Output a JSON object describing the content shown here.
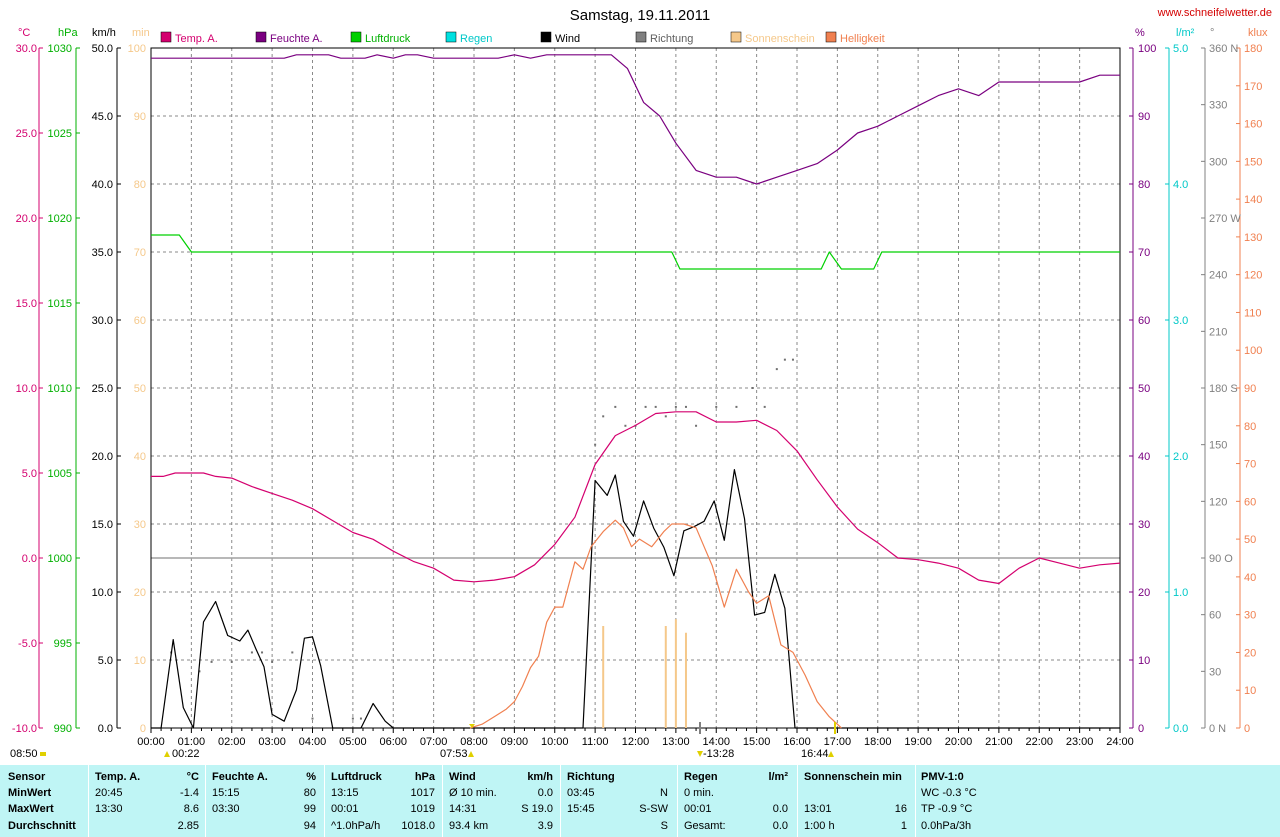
{
  "title": "Samstag, 19.11.2011",
  "site": "www.schneifelwetter.de",
  "chart_data": {
    "type": "line",
    "legend": {
      "placement": "top",
      "entries": [
        {
          "name": "Temp. A.",
          "color": "#d4006f"
        },
        {
          "name": "Feuchte A.",
          "color": "#7a0080"
        },
        {
          "name": "Luftdruck",
          "color": "#00d000"
        },
        {
          "name": "Regen",
          "color": "#00e0e0"
        },
        {
          "name": "Wind",
          "color": "#000000"
        },
        {
          "name": "Richtung",
          "color": "#808080"
        },
        {
          "name": "Sonnenschein",
          "color": "#f5c88a"
        },
        {
          "name": "Helligkeit",
          "color": "#f08050"
        }
      ]
    },
    "axes": {
      "temp": {
        "unit": "°C",
        "color": "#d4006f",
        "ylim": [
          -10,
          30
        ],
        "ticks": [
          "30.0",
          "25.0",
          "20.0",
          "15.0",
          "10.0",
          "5.0",
          "0.0",
          "-5.0",
          "-10.0"
        ]
      },
      "pressure": {
        "unit": "hPa",
        "color": "#00b000",
        "ylim": [
          990,
          1030
        ],
        "ticks": [
          "1030",
          "1025",
          "1020",
          "1015",
          "1010",
          "1005",
          "1000",
          "995",
          "990"
        ]
      },
      "wind": {
        "unit": "km/h",
        "color": "#000000",
        "ylim": [
          0,
          50
        ],
        "ticks": [
          "50.0",
          "45.0",
          "40.0",
          "35.0",
          "30.0",
          "25.0",
          "20.0",
          "15.0",
          "10.0",
          "5.0",
          "0.0"
        ]
      },
      "sun": {
        "unit": "min",
        "color": "#f5c88a",
        "ylim": [
          0,
          100
        ],
        "ticks": [
          "100",
          "90",
          "80",
          "70",
          "60",
          "50",
          "40",
          "30",
          "20",
          "10",
          "0"
        ]
      },
      "humidity": {
        "unit": "%",
        "color": "#7a0080",
        "ylim": [
          0,
          100
        ],
        "ticks": [
          "100",
          "90",
          "80",
          "70",
          "60",
          "50",
          "40",
          "30",
          "20",
          "10",
          "0"
        ]
      },
      "rain": {
        "unit": "l/m²",
        "color": "#00c8c8",
        "ylim": [
          0,
          5
        ],
        "ticks": [
          "5.0",
          "4.0",
          "3.0",
          "2.0",
          "1.0",
          "0.0"
        ]
      },
      "direction": {
        "unit": "°",
        "color": "#808080",
        "ylim": [
          0,
          360
        ],
        "ticks": [
          "360 N",
          "330",
          "300",
          "270 W",
          "240",
          "210",
          "180 S",
          "150",
          "120",
          "90 O",
          "60",
          "30",
          "0 N"
        ]
      },
      "brightness": {
        "unit": "klux",
        "color": "#f08050",
        "ylim": [
          0,
          180
        ],
        "ticks": [
          "180",
          "170",
          "160",
          "150",
          "140",
          "130",
          "120",
          "110",
          "100",
          "90",
          "80",
          "70",
          "60",
          "50",
          "40",
          "30",
          "20",
          "10",
          "0"
        ]
      }
    },
    "x_ticks": [
      "00:00",
      "01:00",
      "02:00",
      "03:00",
      "04:00",
      "05:00",
      "06:00",
      "07:00",
      "08:00",
      "09:00",
      "10:00",
      "11:00",
      "12:00",
      "13:00",
      "14:00",
      "15:00",
      "16:00",
      "17:00",
      "18:00",
      "19:00",
      "20:00",
      "21:00",
      "22:00",
      "23:00",
      "24:00"
    ],
    "xlim": [
      0,
      24
    ],
    "grid": true,
    "markers": {
      "left": "08:50",
      "moonrise": "00:22",
      "sunrise": "07:53",
      "noon": "-13:28",
      "sunset": "16:44"
    },
    "series": [
      {
        "name": "Temp. A.",
        "axis": "temp",
        "x": [
          0,
          0.3,
          0.6,
          1,
          1.3,
          1.6,
          2,
          2.5,
          3,
          3.5,
          4,
          4.5,
          5,
          5.5,
          6,
          6.5,
          7,
          7.5,
          8,
          8.5,
          9,
          9.5,
          10,
          10.5,
          11,
          11.5,
          12,
          12.5,
          13,
          13.5,
          14,
          14.5,
          15,
          15.5,
          16,
          16.5,
          17,
          17.5,
          18,
          18.5,
          19,
          19.5,
          20,
          20.5,
          21,
          21.5,
          22,
          22.5,
          23,
          23.5,
          24
        ],
        "y": [
          4.8,
          4.8,
          5.0,
          5.0,
          5.0,
          4.8,
          4.7,
          4.2,
          3.8,
          3.4,
          2.9,
          2.2,
          1.5,
          1.1,
          0.4,
          -0.2,
          -0.6,
          -1.3,
          -1.4,
          -1.3,
          -1.1,
          -0.4,
          0.8,
          2.4,
          5.5,
          7.2,
          7.8,
          8.5,
          8.6,
          8.6,
          8.0,
          8.0,
          8.1,
          7.5,
          6.3,
          4.6,
          3.0,
          1.7,
          0.9,
          0.0,
          -0.1,
          -0.3,
          -0.6,
          -1.3,
          -1.5,
          -0.6,
          0.0,
          -0.3,
          -0.6,
          -0.4,
          -0.3
        ]
      },
      {
        "name": "Feuchte A.",
        "axis": "humidity",
        "x": [
          0,
          1,
          2,
          3,
          3.3,
          3.6,
          4,
          4.4,
          4.7,
          5,
          5.3,
          5.6,
          6,
          6.3,
          6.6,
          7,
          7.4,
          7.8,
          8.2,
          8.6,
          9,
          9.4,
          9.8,
          10.2,
          10.6,
          11,
          11.4,
          11.8,
          12.2,
          12.6,
          13,
          13.5,
          14,
          14.5,
          15,
          15.5,
          16,
          16.5,
          17,
          17.5,
          18,
          18.5,
          19,
          19.5,
          20,
          20.5,
          21,
          21.5,
          22,
          22.5,
          23,
          23.5,
          24
        ],
        "y": [
          98.5,
          98.5,
          98.5,
          98.5,
          98.5,
          99,
          99,
          99,
          98.5,
          98.5,
          98.5,
          99,
          98.5,
          99,
          99,
          98.5,
          98.5,
          98.5,
          98.5,
          98.5,
          99,
          98.5,
          99,
          99,
          99,
          99,
          99,
          97,
          92,
          90,
          86,
          82,
          81,
          81,
          80,
          81,
          82,
          83,
          85,
          87.5,
          88.5,
          90,
          91.5,
          93,
          94,
          93,
          95,
          95,
          95,
          95,
          95,
          96,
          96
        ]
      },
      {
        "name": "Luftdruck",
        "axis": "pressure",
        "x": [
          0,
          0.7,
          1.0,
          12.9,
          13.1,
          16.6,
          16.8,
          17.1,
          17.9,
          18.1,
          24
        ],
        "y": [
          1019,
          1019,
          1018,
          1018,
          1017,
          1017,
          1018,
          1017,
          1017,
          1018,
          1018
        ]
      },
      {
        "name": "Wind",
        "axis": "wind",
        "x": [
          0,
          0.25,
          0.55,
          0.8,
          1.05,
          1.3,
          1.6,
          1.9,
          2.2,
          2.4,
          2.6,
          2.8,
          3.0,
          3.3,
          3.6,
          3.8,
          4.0,
          4.2,
          4.5,
          5.0,
          5.2,
          5.5,
          5.8,
          6.0,
          7,
          8,
          9,
          10,
          10.2,
          10.5,
          10.7,
          11.0,
          11.3,
          11.5,
          11.7,
          11.95,
          12.2,
          12.45,
          12.7,
          12.95,
          13.2,
          13.45,
          13.7,
          13.95,
          14.2,
          14.45,
          14.7,
          14.95,
          15.2,
          15.45,
          15.7,
          15.95,
          16.2,
          24
        ],
        "y": [
          0,
          0,
          6.5,
          1.5,
          0,
          7.8,
          9.3,
          6.8,
          6.4,
          7.2,
          5.8,
          4.5,
          1.0,
          0.5,
          2.8,
          6.6,
          6.7,
          4.6,
          0,
          0,
          0,
          1.8,
          0.5,
          0,
          0,
          0,
          0,
          0,
          0,
          0,
          0,
          18.2,
          17.1,
          18.6,
          15.2,
          14.1,
          16.7,
          14.7,
          13.3,
          11.2,
          14.5,
          14.8,
          15.2,
          16.7,
          13.8,
          19.0,
          15.4,
          8.3,
          8.5,
          11.3,
          8.8,
          0,
          0,
          0
        ]
      },
      {
        "name": "Helligkeit",
        "axis": "brightness",
        "x": [
          7.9,
          8.2,
          8.5,
          8.8,
          9.0,
          9.2,
          9.4,
          9.6,
          9.8,
          10.0,
          10.2,
          10.5,
          10.7,
          10.9,
          11.2,
          11.5,
          11.7,
          11.9,
          12.1,
          12.4,
          12.7,
          12.9,
          13.2,
          13.5,
          13.7,
          13.9,
          14.2,
          14.5,
          14.8,
          15.0,
          15.3,
          15.6,
          15.9,
          16.2,
          16.5,
          16.8,
          17.1
        ],
        "y": [
          0,
          1,
          3,
          5,
          7,
          11,
          16,
          19,
          28,
          32,
          32,
          44,
          42,
          48,
          52,
          55,
          53,
          48,
          50,
          48,
          52,
          54,
          54,
          53,
          48,
          43,
          32,
          42,
          36,
          33,
          35,
          22,
          20,
          14,
          7,
          3,
          0
        ]
      }
    ],
    "sunshine_bars": {
      "axis": "sun",
      "x": [
        11.2,
        12.75,
        13.0,
        13.25
      ],
      "y": [
        15,
        15,
        16,
        14
      ]
    },
    "direction_points": {
      "axis": "direction",
      "x": [
        0.5,
        1.2,
        1.5,
        2.0,
        2.5,
        2.75,
        3.0,
        3.5,
        4.0,
        5.0,
        5.2,
        11.0,
        11.2,
        11.5,
        11.75,
        12.0,
        12.25,
        12.5,
        12.75,
        13.0,
        13.25,
        13.5,
        14.0,
        14.5,
        14.9,
        15.2,
        15.5,
        15.7,
        15.9
      ],
      "y": [
        40,
        30,
        35,
        35,
        40,
        40,
        35,
        40,
        5,
        5,
        5,
        150,
        165,
        170,
        160,
        160,
        170,
        170,
        165,
        170,
        170,
        160,
        170,
        170,
        180,
        170,
        190,
        195,
        195
      ]
    }
  },
  "stats": {
    "sensor": {
      "header": "Sensor",
      "rows": [
        "MinWert",
        "MaxWert",
        "Durchschnitt"
      ]
    },
    "temp": {
      "header": "Temp. A.",
      "unit": "°C",
      "rows": [
        [
          "20:45",
          "-1.4"
        ],
        [
          "13:30",
          "8.6"
        ],
        [
          "",
          "2.85"
        ]
      ]
    },
    "humidity": {
      "header": "Feuchte A.",
      "unit": "%",
      "rows": [
        [
          "15:15",
          "80"
        ],
        [
          "03:30",
          "99"
        ],
        [
          "",
          "94"
        ]
      ]
    },
    "pressure": {
      "header": "Luftdruck",
      "unit": "hPa",
      "rows": [
        [
          "13:15",
          "1017"
        ],
        [
          "00:01",
          "1019"
        ],
        [
          "^1.0hPa/h",
          "1018.0"
        ]
      ]
    },
    "wind": {
      "header": "Wind",
      "unit": "km/h",
      "rows": [
        [
          "Ø 10 min.",
          "0.0"
        ],
        [
          "14:31",
          "S 19.0"
        ],
        [
          "93.4 km",
          "3.9"
        ]
      ]
    },
    "direction": {
      "header": "Richtung",
      "rows": [
        [
          "03:45",
          "N"
        ],
        [
          "15:45",
          "S-SW"
        ],
        [
          "",
          "S"
        ]
      ]
    },
    "rain": {
      "header": "Regen",
      "unit": "l/m²",
      "rows": [
        [
          "0 min.",
          ""
        ],
        [
          "00:01",
          "0.0"
        ],
        [
          "Gesamt:",
          "0.0"
        ]
      ]
    },
    "sunshine": {
      "header": "Sonnenschein min",
      "rows": [
        [
          "",
          ""
        ],
        [
          "13:01",
          "16"
        ],
        [
          "1:00 h",
          "1"
        ]
      ]
    },
    "pmv": {
      "header": "PMV-1:0",
      "rows": [
        "WC -0.3 °C",
        "TP -0.9 °C",
        "0.0hPa/3h"
      ]
    }
  }
}
